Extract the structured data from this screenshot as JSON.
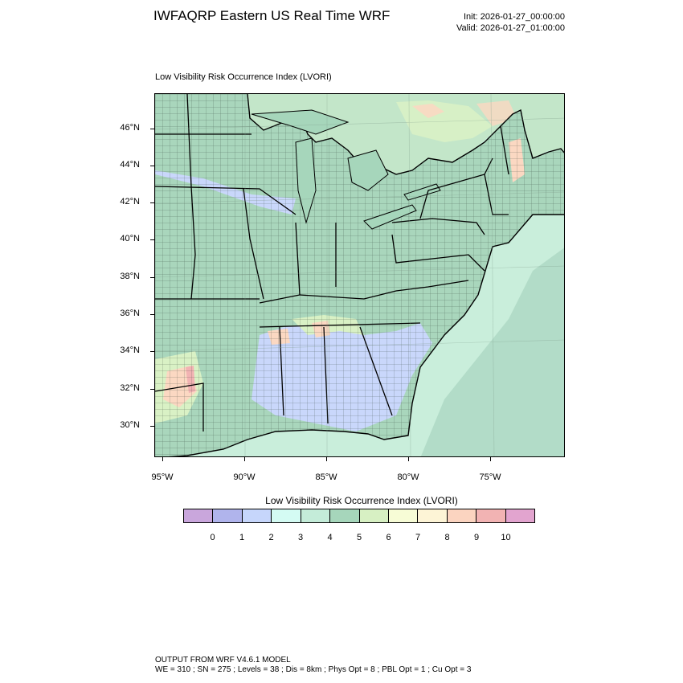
{
  "header": {
    "title": "IWFAQRP Eastern US Real Time WRF",
    "init": "Init: 2026-01-27_00:00:00",
    "valid": "Valid: 2026-01-27_01:00:00"
  },
  "plot": {
    "field_title": "Low Visibility Risk Occurrence Index   (LVORI)",
    "lat_labels": [
      "46°N",
      "44°N",
      "42°N",
      "40°N",
      "38°N",
      "36°N",
      "34°N",
      "32°N",
      "30°N"
    ],
    "lon_labels": [
      "95°W",
      "90°W",
      "85°W",
      "80°W",
      "75°W"
    ]
  },
  "colorbar": {
    "title": "Low Visibility Risk Occurrence Index  (LVORI)",
    "colors": [
      "#c9a6dc",
      "#b0b4ec",
      "#c6d6fb",
      "#d4fbf3",
      "#c4ecd9",
      "#a6d6bb",
      "#d7f0c3",
      "#f7fcd6",
      "#fdf4d6",
      "#fbd4c0",
      "#f2b3b3",
      "#e2a4cf"
    ],
    "labels": [
      "0",
      "1",
      "2",
      "3",
      "4",
      "5",
      "6",
      "7",
      "8",
      "9",
      "10"
    ]
  },
  "map_colors": {
    "ocean": "#c9eedb",
    "ocean_deep": "#b2dcc8",
    "land_base": "#a9d6bc",
    "lakes": "#a6d6bb",
    "low_risk": "#c9d7fb",
    "mid_risk": "#d9f1c5",
    "high_risk": "#fbd8c2",
    "peak_risk": "#f2b3b3",
    "canada": "#c3e6c9"
  },
  "footer": {
    "line1": "OUTPUT FROM WRF V4.6.1 MODEL",
    "line2": "WE = 310 ; SN = 275 ; Levels = 38 ; Dis = 8km ; Phys Opt = 8 ; PBL Opt = 1 ; Cu Opt = 3"
  }
}
